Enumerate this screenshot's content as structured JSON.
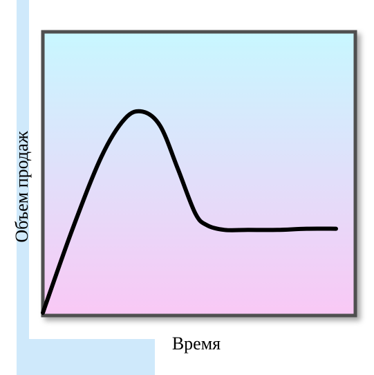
{
  "chart_data": {
    "type": "line",
    "title": "",
    "xlabel": "Время",
    "ylabel": "Объем продаж",
    "grid": false,
    "legend": "none",
    "xlim": [
      0,
      100
    ],
    "ylim": [
      0,
      100
    ],
    "x": [
      0,
      10,
      20,
      28,
      34,
      40,
      46,
      52,
      56,
      62,
      70,
      80,
      90,
      100
    ],
    "series": [
      {
        "values": [
          0,
          35,
          66,
          82,
          85,
          79,
          61,
          42,
          37,
          35,
          35,
          35,
          35.5,
          35.5
        ]
      }
    ],
    "colors": {
      "line": "#000000",
      "frame": "#505050",
      "bg_top": "#c8f7ff",
      "bg_bottom": "#f9c8f5",
      "band": "#cfe9fb"
    }
  }
}
